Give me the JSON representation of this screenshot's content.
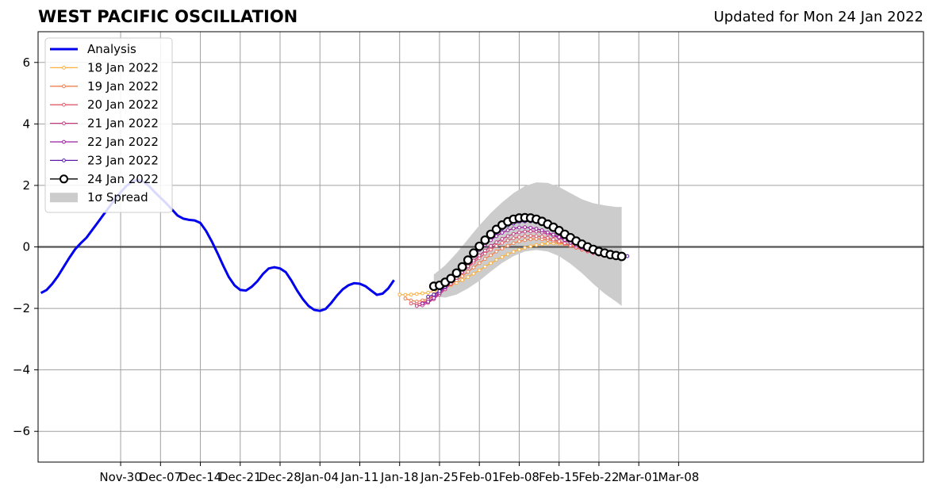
{
  "title": "WEST PACIFIC OSCILLATION",
  "updated": "Updated for Mon 24 Jan 2022",
  "chart_data": {
    "type": "line",
    "ylim": [
      -7,
      7
    ],
    "xlim_days": [
      -7.5,
      148
    ],
    "x_origin_label": "Nov-23",
    "yticks": [
      -6,
      -4,
      -2,
      0,
      2,
      4,
      6
    ],
    "xticks": [
      {
        "day": 7,
        "label": "Nov-30"
      },
      {
        "day": 14,
        "label": "Dec-07"
      },
      {
        "day": 21,
        "label": "Dec-14"
      },
      {
        "day": 28,
        "label": "Dec-21"
      },
      {
        "day": 35,
        "label": "Dec-28"
      },
      {
        "day": 42,
        "label": "Jan-04"
      },
      {
        "day": 49,
        "label": "Jan-11"
      },
      {
        "day": 56,
        "label": "Jan-18"
      },
      {
        "day": 63,
        "label": "Jan-25"
      },
      {
        "day": 70,
        "label": "Feb-01"
      },
      {
        "day": 77,
        "label": "Feb-08"
      },
      {
        "day": 84,
        "label": "Feb-15"
      },
      {
        "day": 91,
        "label": "Feb-22"
      },
      {
        "day": 98,
        "label": "Mar-01"
      },
      {
        "day": 105,
        "label": "Mar-08"
      }
    ],
    "grid": true,
    "legend_position": "top-left",
    "analysis": {
      "name": "Analysis",
      "color": "#0000ee",
      "start_day": -7,
      "values": [
        -1.5,
        -1.4,
        -1.2,
        -0.95,
        -0.65,
        -0.35,
        -0.08,
        0.12,
        0.3,
        0.55,
        0.8,
        1.05,
        1.3,
        1.55,
        1.78,
        1.98,
        2.12,
        2.18,
        2.12,
        1.98,
        1.78,
        1.6,
        1.42,
        1.22,
        1.02,
        0.92,
        0.88,
        0.86,
        0.78,
        0.52,
        0.18,
        -0.2,
        -0.6,
        -0.98,
        -1.25,
        -1.4,
        -1.42,
        -1.3,
        -1.12,
        -0.88,
        -0.7,
        -0.66,
        -0.7,
        -0.82,
        -1.1,
        -1.42,
        -1.7,
        -1.92,
        -2.05,
        -2.08,
        -2.02,
        -1.82,
        -1.58,
        -1.38,
        -1.25,
        -1.18,
        -1.2,
        -1.28,
        -1.42,
        -1.56,
        -1.52,
        -1.35,
        -1.08
      ]
    },
    "forecasts": [
      {
        "name": "18 Jan 2022",
        "color": "#fbb040",
        "points": [
          [
            56,
            -1.55
          ],
          [
            57,
            -1.56
          ],
          [
            58,
            -1.55
          ],
          [
            59,
            -1.53
          ],
          [
            60,
            -1.51
          ],
          [
            61,
            -1.49
          ],
          [
            62,
            -1.44
          ],
          [
            63,
            -1.38
          ],
          [
            64,
            -1.32
          ],
          [
            65,
            -1.25
          ],
          [
            66,
            -1.17
          ],
          [
            67,
            -1.08
          ],
          [
            68,
            -0.98
          ],
          [
            69,
            -0.87
          ],
          [
            70,
            -0.76
          ],
          [
            71,
            -0.64
          ],
          [
            72,
            -0.53
          ],
          [
            73,
            -0.42
          ],
          [
            74,
            -0.33
          ],
          [
            75,
            -0.24
          ],
          [
            76,
            -0.16
          ],
          [
            77,
            -0.09
          ],
          [
            78,
            -0.03
          ],
          [
            79,
            0.02
          ],
          [
            80,
            0.06
          ],
          [
            81,
            0.09
          ],
          [
            82,
            0.11
          ],
          [
            83,
            0.12
          ],
          [
            84,
            0.11
          ],
          [
            85,
            0.09
          ],
          [
            86,
            0.06
          ],
          [
            87,
            0.02
          ],
          [
            88,
            -0.03
          ],
          [
            89,
            -0.08
          ],
          [
            90,
            -0.13
          ],
          [
            91,
            -0.18
          ]
        ]
      },
      {
        "name": "19 Jan 2022",
        "color": "#f07f4f",
        "points": [
          [
            57,
            -1.68
          ],
          [
            58,
            -1.74
          ],
          [
            59,
            -1.78
          ],
          [
            60,
            -1.74
          ],
          [
            61,
            -1.68
          ],
          [
            62,
            -1.58
          ],
          [
            63,
            -1.47
          ],
          [
            64,
            -1.35
          ],
          [
            65,
            -1.22
          ],
          [
            66,
            -1.09
          ],
          [
            67,
            -0.95
          ],
          [
            68,
            -0.81
          ],
          [
            69,
            -0.67
          ],
          [
            70,
            -0.53
          ],
          [
            71,
            -0.39
          ],
          [
            72,
            -0.27
          ],
          [
            73,
            -0.15
          ],
          [
            74,
            -0.05
          ],
          [
            75,
            0.04
          ],
          [
            76,
            0.12
          ],
          [
            77,
            0.18
          ],
          [
            78,
            0.22
          ],
          [
            79,
            0.25
          ],
          [
            80,
            0.26
          ],
          [
            81,
            0.25
          ],
          [
            82,
            0.23
          ],
          [
            83,
            0.19
          ],
          [
            84,
            0.14
          ],
          [
            85,
            0.09
          ],
          [
            86,
            0.03
          ],
          [
            87,
            -0.03
          ],
          [
            88,
            -0.09
          ],
          [
            89,
            -0.15
          ],
          [
            90,
            -0.2
          ],
          [
            91,
            -0.25
          ],
          [
            92,
            -0.29
          ]
        ]
      },
      {
        "name": "20 Jan 2022",
        "color": "#e05b6a",
        "points": [
          [
            58,
            -1.84
          ],
          [
            59,
            -1.86
          ],
          [
            60,
            -1.82
          ],
          [
            61,
            -1.72
          ],
          [
            62,
            -1.6
          ],
          [
            63,
            -1.46
          ],
          [
            64,
            -1.31
          ],
          [
            65,
            -1.15
          ],
          [
            66,
            -0.99
          ],
          [
            67,
            -0.83
          ],
          [
            68,
            -0.67
          ],
          [
            69,
            -0.51
          ],
          [
            70,
            -0.36
          ],
          [
            71,
            -0.22
          ],
          [
            72,
            -0.09
          ],
          [
            73,
            0.03
          ],
          [
            74,
            0.13
          ],
          [
            75,
            0.21
          ],
          [
            76,
            0.28
          ],
          [
            77,
            0.32
          ],
          [
            78,
            0.35
          ],
          [
            79,
            0.36
          ],
          [
            80,
            0.35
          ],
          [
            81,
            0.33
          ],
          [
            82,
            0.29
          ],
          [
            83,
            0.24
          ],
          [
            84,
            0.18
          ],
          [
            85,
            0.12
          ],
          [
            86,
            0.05
          ],
          [
            87,
            -0.02
          ],
          [
            88,
            -0.08
          ],
          [
            89,
            -0.14
          ],
          [
            90,
            -0.2
          ],
          [
            91,
            -0.25
          ],
          [
            92,
            -0.29
          ],
          [
            93,
            -0.32
          ]
        ]
      },
      {
        "name": "21 Jan 2022",
        "color": "#c23b80",
        "points": [
          [
            59,
            -1.92
          ],
          [
            60,
            -1.9
          ],
          [
            61,
            -1.82
          ],
          [
            62,
            -1.7
          ],
          [
            63,
            -1.55
          ],
          [
            64,
            -1.38
          ],
          [
            65,
            -1.2
          ],
          [
            66,
            -1.01
          ],
          [
            67,
            -0.82
          ],
          [
            68,
            -0.63
          ],
          [
            69,
            -0.45
          ],
          [
            70,
            -0.28
          ],
          [
            71,
            -0.12
          ],
          [
            72,
            0.03
          ],
          [
            73,
            0.15
          ],
          [
            74,
            0.26
          ],
          [
            75,
            0.35
          ],
          [
            76,
            0.42
          ],
          [
            77,
            0.47
          ],
          [
            78,
            0.5
          ],
          [
            79,
            0.51
          ],
          [
            80,
            0.5
          ],
          [
            81,
            0.47
          ],
          [
            82,
            0.42
          ],
          [
            83,
            0.36
          ],
          [
            84,
            0.29
          ],
          [
            85,
            0.21
          ],
          [
            86,
            0.13
          ],
          [
            87,
            0.05
          ],
          [
            88,
            -0.03
          ],
          [
            89,
            -0.1
          ],
          [
            90,
            -0.17
          ],
          [
            91,
            -0.22
          ],
          [
            92,
            -0.27
          ],
          [
            93,
            -0.3
          ],
          [
            94,
            -0.32
          ]
        ]
      },
      {
        "name": "22 Jan 2022",
        "color": "#9a1fa0",
        "points": [
          [
            60,
            -1.84
          ],
          [
            61,
            -1.78
          ],
          [
            62,
            -1.66
          ],
          [
            63,
            -1.5
          ],
          [
            64,
            -1.32
          ],
          [
            65,
            -1.12
          ],
          [
            66,
            -0.91
          ],
          [
            67,
            -0.7
          ],
          [
            68,
            -0.49
          ],
          [
            69,
            -0.29
          ],
          [
            70,
            -0.1
          ],
          [
            71,
            0.07
          ],
          [
            72,
            0.22
          ],
          [
            73,
            0.35
          ],
          [
            74,
            0.46
          ],
          [
            75,
            0.54
          ],
          [
            76,
            0.6
          ],
          [
            77,
            0.63
          ],
          [
            78,
            0.64
          ],
          [
            79,
            0.62
          ],
          [
            80,
            0.59
          ],
          [
            81,
            0.54
          ],
          [
            82,
            0.47
          ],
          [
            83,
            0.4
          ],
          [
            84,
            0.32
          ],
          [
            85,
            0.23
          ],
          [
            86,
            0.14
          ],
          [
            87,
            0.05
          ],
          [
            88,
            -0.03
          ],
          [
            89,
            -0.11
          ],
          [
            90,
            -0.18
          ],
          [
            91,
            -0.24
          ],
          [
            92,
            -0.28
          ],
          [
            93,
            -0.31
          ],
          [
            94,
            -0.33
          ],
          [
            95,
            -0.34
          ]
        ]
      },
      {
        "name": "23 Jan 2022",
        "color": "#5a1aa8",
        "points": [
          [
            61,
            -1.62
          ],
          [
            62,
            -1.55
          ],
          [
            63,
            -1.44
          ],
          [
            64,
            -1.29
          ],
          [
            65,
            -1.11
          ],
          [
            66,
            -0.91
          ],
          [
            67,
            -0.69
          ],
          [
            68,
            -0.47
          ],
          [
            69,
            -0.25
          ],
          [
            70,
            -0.05
          ],
          [
            71,
            0.14
          ],
          [
            72,
            0.31
          ],
          [
            73,
            0.46
          ],
          [
            74,
            0.59
          ],
          [
            75,
            0.69
          ],
          [
            76,
            0.76
          ],
          [
            77,
            0.81
          ],
          [
            78,
            0.83
          ],
          [
            79,
            0.83
          ],
          [
            80,
            0.8
          ],
          [
            81,
            0.75
          ],
          [
            82,
            0.68
          ],
          [
            83,
            0.6
          ],
          [
            84,
            0.51
          ],
          [
            85,
            0.41
          ],
          [
            86,
            0.31
          ],
          [
            87,
            0.21
          ],
          [
            88,
            0.11
          ],
          [
            89,
            0.02
          ],
          [
            90,
            -0.06
          ],
          [
            91,
            -0.13
          ],
          [
            92,
            -0.19
          ],
          [
            93,
            -0.24
          ],
          [
            94,
            -0.27
          ],
          [
            95,
            -0.29
          ],
          [
            96,
            -0.3
          ]
        ]
      },
      {
        "name": "24 Jan 2022",
        "color": "#000000",
        "marker": "open-circle",
        "points": [
          [
            62,
            -1.28
          ],
          [
            63,
            -1.25
          ],
          [
            64,
            -1.15
          ],
          [
            65,
            -1.03
          ],
          [
            66,
            -0.85
          ],
          [
            67,
            -0.65
          ],
          [
            68,
            -0.43
          ],
          [
            69,
            -0.2
          ],
          [
            70,
            0.02
          ],
          [
            71,
            0.22
          ],
          [
            72,
            0.41
          ],
          [
            73,
            0.57
          ],
          [
            74,
            0.71
          ],
          [
            75,
            0.82
          ],
          [
            76,
            0.9
          ],
          [
            77,
            0.94
          ],
          [
            78,
            0.95
          ],
          [
            79,
            0.94
          ],
          [
            80,
            0.9
          ],
          [
            81,
            0.83
          ],
          [
            82,
            0.74
          ],
          [
            83,
            0.64
          ],
          [
            84,
            0.53
          ],
          [
            85,
            0.41
          ],
          [
            86,
            0.3
          ],
          [
            87,
            0.19
          ],
          [
            88,
            0.09
          ],
          [
            89,
            0.0
          ],
          [
            90,
            -0.08
          ],
          [
            91,
            -0.15
          ],
          [
            92,
            -0.2
          ],
          [
            93,
            -0.25
          ],
          [
            94,
            -0.28
          ],
          [
            95,
            -0.31
          ]
        ]
      }
    ],
    "spread": {
      "name": "1σ Spread",
      "color": "#cccccc",
      "days": [
        62,
        64,
        66,
        68,
        70,
        72,
        74,
        76,
        78,
        80,
        82,
        84,
        86,
        88,
        90,
        92,
        94,
        95
      ],
      "upper": [
        -0.9,
        -0.6,
        -0.2,
        0.25,
        0.7,
        1.1,
        1.45,
        1.75,
        1.98,
        2.1,
        2.08,
        1.95,
        1.75,
        1.55,
        1.42,
        1.35,
        1.3,
        1.3
      ],
      "lower": [
        -1.6,
        -1.65,
        -1.55,
        -1.35,
        -1.1,
        -0.8,
        -0.52,
        -0.3,
        -0.15,
        -0.1,
        -0.15,
        -0.3,
        -0.55,
        -0.85,
        -1.2,
        -1.52,
        -1.78,
        -1.92
      ]
    },
    "legend": [
      "Analysis",
      "18 Jan 2022",
      "19 Jan 2022",
      "20 Jan 2022",
      "21 Jan 2022",
      "22 Jan 2022",
      "23 Jan 2022",
      "24 Jan 2022",
      "1σ Spread"
    ]
  }
}
